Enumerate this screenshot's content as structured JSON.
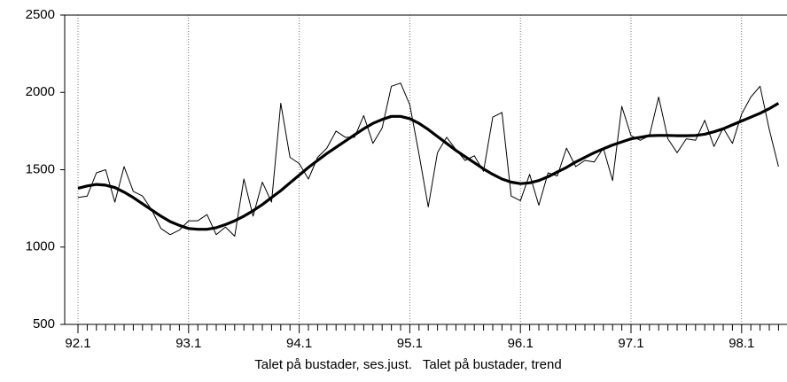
{
  "chart_data": {
    "type": "line",
    "categories": [
      "92.1",
      null,
      null,
      null,
      null,
      null,
      null,
      null,
      null,
      null,
      null,
      null,
      "93.1",
      null,
      null,
      null,
      null,
      null,
      null,
      null,
      null,
      null,
      null,
      null,
      "94.1",
      null,
      null,
      null,
      null,
      null,
      null,
      null,
      null,
      null,
      null,
      null,
      "95.1",
      null,
      null,
      null,
      null,
      null,
      null,
      null,
      null,
      null,
      null,
      null,
      "96.1",
      null,
      null,
      null,
      null,
      null,
      null,
      null,
      null,
      null,
      null,
      null,
      "97.1",
      null,
      null,
      null,
      null,
      null,
      null,
      null,
      null,
      null,
      null,
      null,
      "98.1",
      null,
      null,
      null,
      null
    ],
    "series": [
      {
        "name": "Talet på bustader, ses.just.",
        "color": "#000000",
        "values": [
          1320,
          1330,
          1480,
          1500,
          1290,
          1520,
          1360,
          1330,
          1240,
          1120,
          1080,
          1110,
          1170,
          1170,
          1210,
          1080,
          1130,
          1070,
          1440,
          1200,
          1420,
          1290,
          1930,
          1580,
          1540,
          1440,
          1580,
          1640,
          1750,
          1710,
          1710,
          1850,
          1670,
          1770,
          2040,
          2060,
          1920,
          1600,
          1260,
          1610,
          1710,
          1630,
          1560,
          1590,
          1490,
          1840,
          1870,
          1330,
          1300,
          1470,
          1270,
          1480,
          1460,
          1640,
          1520,
          1560,
          1550,
          1640,
          1430,
          1910,
          1720,
          1690,
          1720,
          1970,
          1700,
          1610,
          1700,
          1690,
          1820,
          1650,
          1770,
          1670,
          1860,
          1970,
          2040,
          1760,
          1520
        ]
      },
      {
        "name": "Talet på bustader, trend",
        "color": "#000000",
        "values": [
          1380,
          1395,
          1405,
          1400,
          1385,
          1355,
          1320,
          1280,
          1240,
          1200,
          1165,
          1140,
          1120,
          1115,
          1115,
          1125,
          1145,
          1170,
          1200,
          1235,
          1275,
          1320,
          1365,
          1415,
          1465,
          1515,
          1560,
          1605,
          1645,
          1685,
          1725,
          1765,
          1800,
          1825,
          1845,
          1845,
          1830,
          1800,
          1760,
          1715,
          1670,
          1625,
          1585,
          1545,
          1505,
          1470,
          1440,
          1420,
          1410,
          1415,
          1430,
          1455,
          1485,
          1515,
          1550,
          1580,
          1610,
          1635,
          1660,
          1680,
          1700,
          1710,
          1720,
          1722,
          1722,
          1720,
          1720,
          1722,
          1730,
          1745,
          1765,
          1790,
          1815,
          1840,
          1865,
          1895,
          1930
        ]
      }
    ],
    "ylim": [
      500,
      2500
    ],
    "yticks": [
      500,
      1000,
      1500,
      2000,
      2500
    ],
    "grid": true,
    "legend": "bottom"
  }
}
